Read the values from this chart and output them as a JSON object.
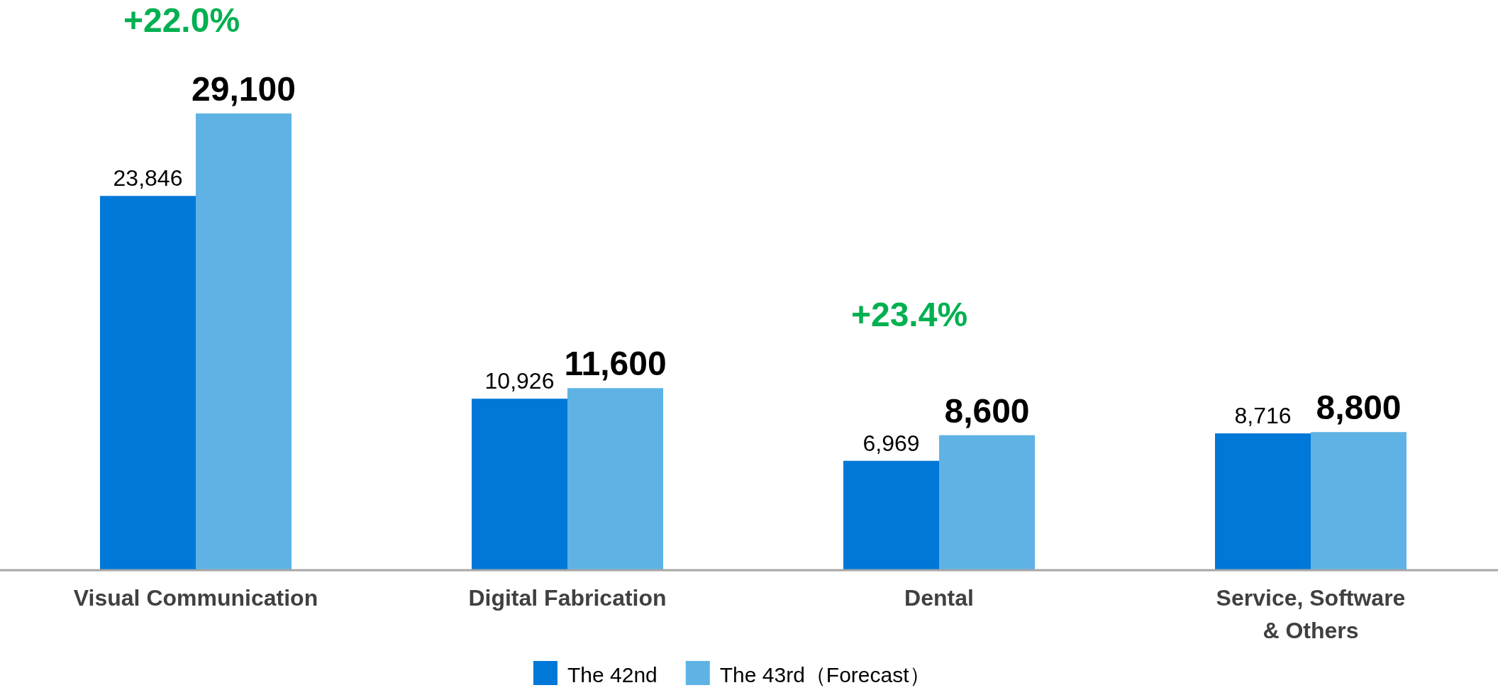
{
  "chart_data": {
    "type": "bar",
    "categories": [
      "Visual Communication",
      "Digital Fabrication",
      "Dental",
      "Service, Software & Others"
    ],
    "series": [
      {
        "name": "The 42nd",
        "color": "#0078d7",
        "values": [
          23846,
          10926,
          6969,
          8716
        ],
        "value_labels": [
          "23,846",
          "10,926",
          "6,969",
          "8,716"
        ]
      },
      {
        "name": "The 43rd（Forecast）",
        "color": "#5eb3e4",
        "values": [
          29100,
          11600,
          8600,
          8800
        ],
        "value_labels": [
          "29,100",
          "11,600",
          "8,600",
          "8,800"
        ]
      }
    ],
    "legend": "bottom",
    "annotations": [
      "+22.0%",
      "+23.4%"
    ]
  }
}
